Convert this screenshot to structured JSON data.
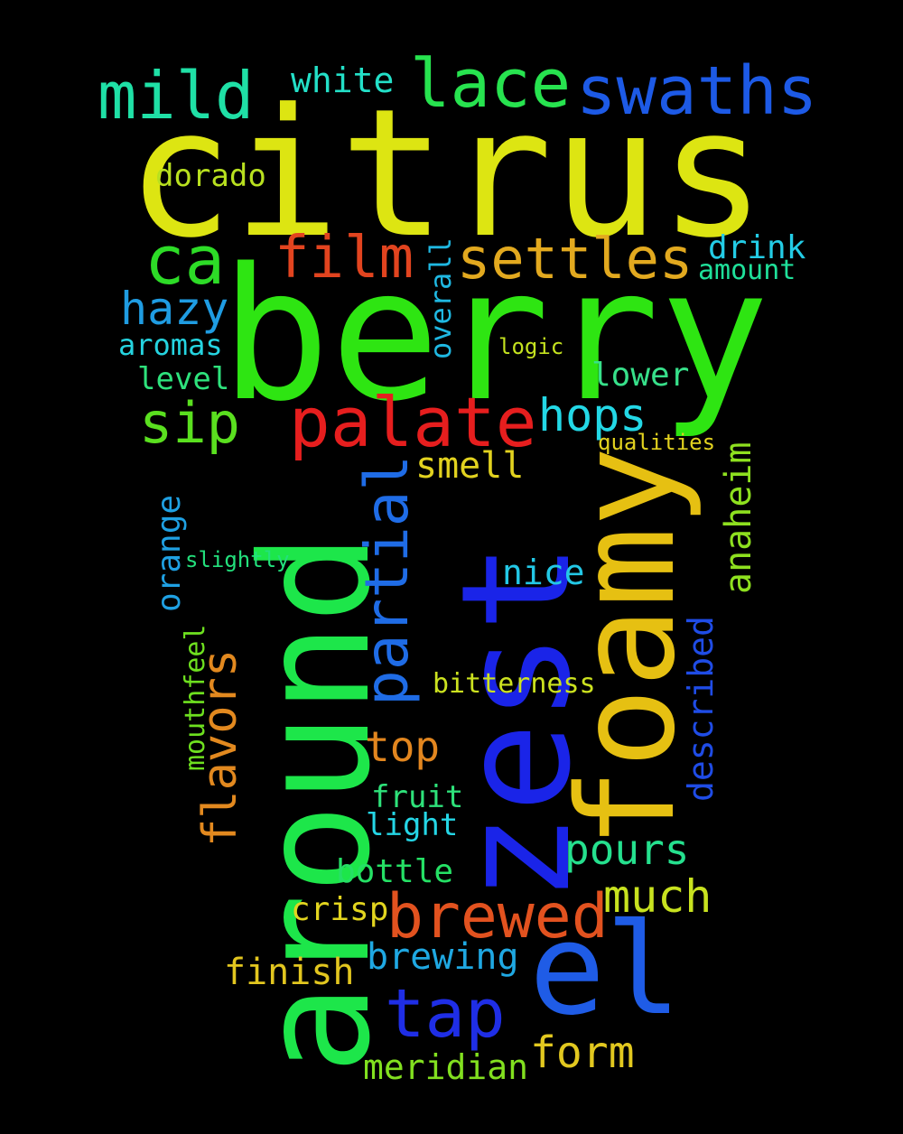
{
  "background": "#000000",
  "words": [
    {
      "text": "citrus",
      "color": "#dde512"
    },
    {
      "text": "berry",
      "color": "#2ee512"
    },
    {
      "text": "zest",
      "color": "#1a24e8"
    },
    {
      "text": "around",
      "color": "#1de64a"
    },
    {
      "text": "foamy",
      "color": "#e6c012"
    },
    {
      "text": "el",
      "color": "#1f5ce6"
    },
    {
      "text": "swaths",
      "color": "#1d5ae6"
    },
    {
      "text": "lace",
      "color": "#27e34f"
    },
    {
      "text": "mild",
      "color": "#1fe0a6"
    },
    {
      "text": "white",
      "color": "#23e0c8"
    },
    {
      "text": "dorado",
      "color": "#b8e01f"
    },
    {
      "text": "ca",
      "color": "#2ddc27"
    },
    {
      "text": "film",
      "color": "#e2441f"
    },
    {
      "text": "settles",
      "color": "#e2a91f"
    },
    {
      "text": "drink",
      "color": "#23cce6"
    },
    {
      "text": "amount",
      "color": "#1fe09a"
    },
    {
      "text": "overall",
      "color": "#1fb8e2"
    },
    {
      "text": "hazy",
      "color": "#1f9ce2"
    },
    {
      "text": "aromas",
      "color": "#25d4e0"
    },
    {
      "text": "logic",
      "color": "#c4e21f"
    },
    {
      "text": "level",
      "color": "#2ee27c"
    },
    {
      "text": "lower",
      "color": "#37e08a"
    },
    {
      "text": "palate",
      "color": "#e61e1e"
    },
    {
      "text": "sip",
      "color": "#5ae01f"
    },
    {
      "text": "hops",
      "color": "#23d8e6"
    },
    {
      "text": "qualities",
      "color": "#e2d21f"
    },
    {
      "text": "smell",
      "color": "#e2d21f"
    },
    {
      "text": "anaheim",
      "color": "#8ee01f"
    },
    {
      "text": "partial",
      "color": "#1f6ce6"
    },
    {
      "text": "orange",
      "color": "#1fa0e2"
    },
    {
      "text": "slightly",
      "color": "#23e07c"
    },
    {
      "text": "nice",
      "color": "#23c8e6"
    },
    {
      "text": "described",
      "color": "#1f4ce6"
    },
    {
      "text": "flavors",
      "color": "#e2891f"
    },
    {
      "text": "mouthfeel",
      "color": "#6ee01f"
    },
    {
      "text": "bitterness",
      "color": "#cce21f"
    },
    {
      "text": "top",
      "color": "#e2861f"
    },
    {
      "text": "fruit",
      "color": "#2ee27a"
    },
    {
      "text": "light",
      "color": "#25d6e6"
    },
    {
      "text": "pours",
      "color": "#25e08e"
    },
    {
      "text": "bottle",
      "color": "#25e065"
    },
    {
      "text": "much",
      "color": "#c8e21f"
    },
    {
      "text": "crisp",
      "color": "#e2d41f"
    },
    {
      "text": "brewed",
      "color": "#e2521f"
    },
    {
      "text": "brewing",
      "color": "#1fa8e2"
    },
    {
      "text": "finish",
      "color": "#e2c61f"
    },
    {
      "text": "tap",
      "color": "#1f2ee6"
    },
    {
      "text": "form",
      "color": "#e2c81f"
    },
    {
      "text": "meridian",
      "color": "#82e01f"
    }
  ]
}
